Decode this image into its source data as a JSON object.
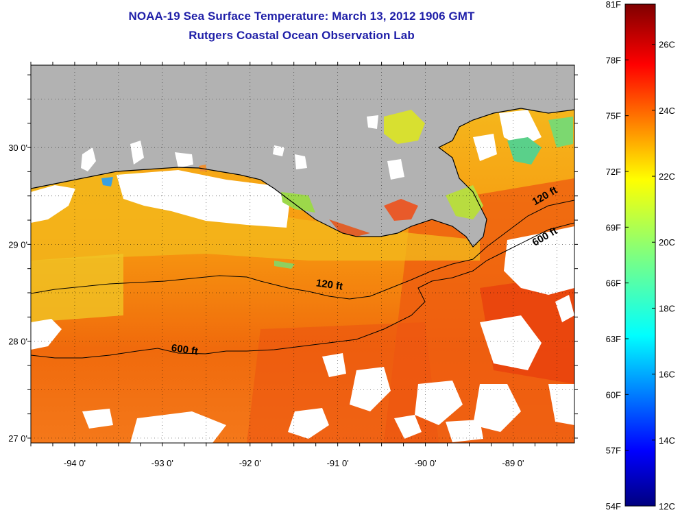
{
  "header": {
    "title_line1": "NOAA-19 Sea Surface Temperature:  March 13, 2012 1906 GMT",
    "title_line2": "Rutgers Coastal Ocean Observation Lab"
  },
  "map": {
    "lon_range": [
      -94.5,
      -88.3
    ],
    "lat_range": [
      26.95,
      30.85
    ],
    "lon_tick_labels": [
      {
        "lon": -94,
        "label": "-94 0'"
      },
      {
        "lon": -93,
        "label": "-93 0'"
      },
      {
        "lon": -92,
        "label": "-92 0'"
      },
      {
        "lon": -91,
        "label": "-91 0'"
      },
      {
        "lon": -90,
        "label": "-90 0'"
      },
      {
        "lon": -89,
        "label": "-89 0'"
      }
    ],
    "lat_tick_labels": [
      {
        "lat": 30,
        "label": "30 0'"
      },
      {
        "lat": 29,
        "label": "29 0'"
      },
      {
        "lat": 28,
        "label": "28 0'"
      },
      {
        "lat": 27,
        "label": "27 0'"
      }
    ],
    "grid": "dotted",
    "land_color": "#b2b2b2",
    "cloud_color": "#ffffff",
    "contour_labels": [
      {
        "text": "120 ft",
        "lon": -91.1,
        "lat": 28.55
      },
      {
        "text": "600 ft",
        "lon": -92.75,
        "lat": 27.88
      },
      {
        "text": "120 ft",
        "lon": -88.62,
        "lat": 29.47
      },
      {
        "text": "600 ft",
        "lon": -88.62,
        "lat": 29.05
      }
    ]
  },
  "colorbar": {
    "fahrenheit_labels": [
      "81F",
      "78F",
      "75F",
      "72F",
      "69F",
      "66F",
      "63F",
      "60F",
      "57F",
      "54F"
    ],
    "celsius_labels": [
      "26C",
      "24C",
      "22C",
      "20C",
      "18C",
      "16C",
      "14C",
      "12C"
    ],
    "colormap": "jet",
    "range_F": [
      54,
      81
    ],
    "range_C": [
      12,
      27.22
    ]
  }
}
